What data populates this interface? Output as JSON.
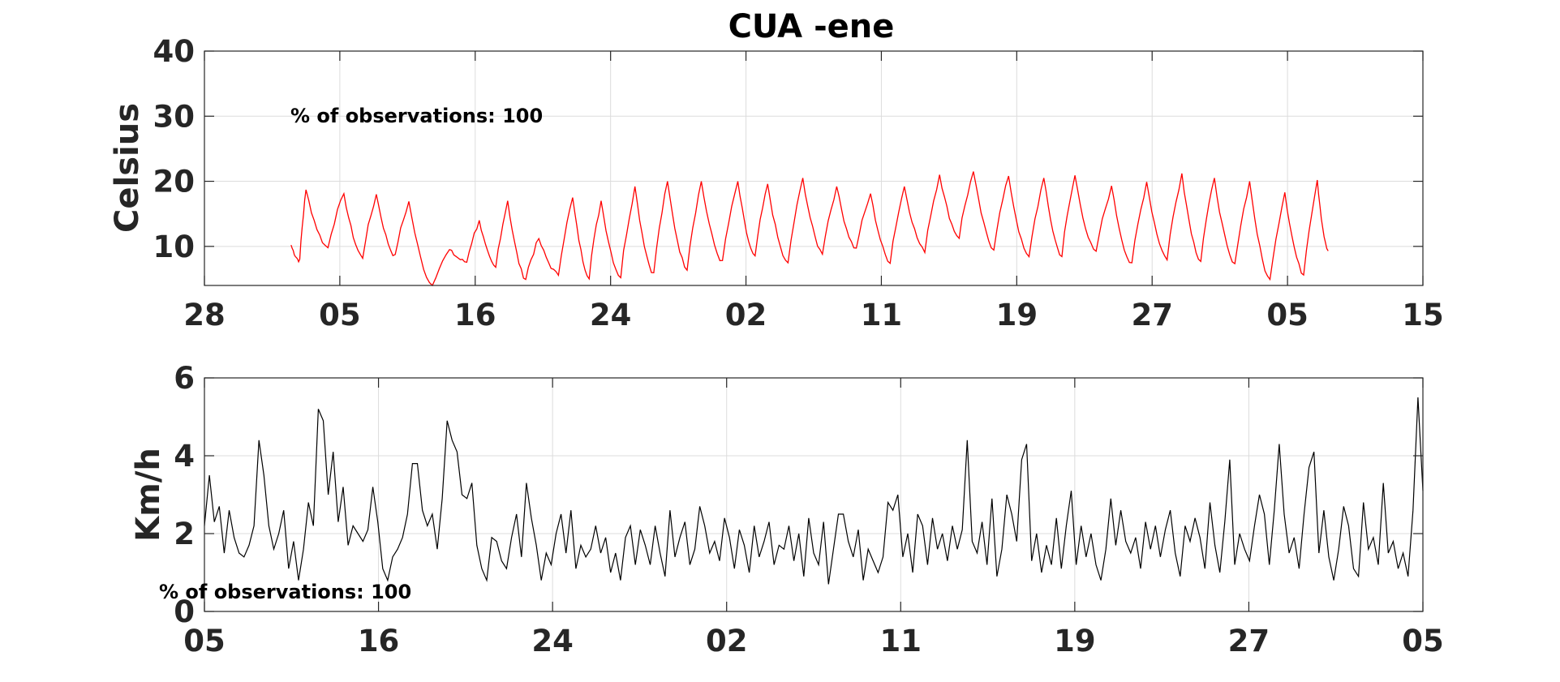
{
  "figure_title": "CUA -ene",
  "chart_data": [
    {
      "type": "line",
      "title": "CUA -ene",
      "ylabel": "Celsius",
      "xlabel": "",
      "annotation": "% of observations: 100",
      "x_tick_labels": [
        "28",
        "05",
        "16",
        "24",
        "02",
        "11",
        "19",
        "27",
        "05",
        "15"
      ],
      "ylim": [
        4,
        40
      ],
      "y_ticks": [
        10,
        20,
        30,
        40
      ],
      "xlim": [
        0,
        9
      ],
      "grid": true,
      "series": [
        {
          "color": "#ff0000",
          "daily_peaks_x": [
            0.75,
            1.03,
            1.27,
            1.51,
            1.81,
            2.03,
            2.24,
            2.47,
            2.72,
            2.93,
            3.18,
            3.42,
            3.67,
            3.94,
            4.16,
            4.42,
            4.67,
            4.92,
            5.17,
            5.43,
            5.68,
            5.94,
            6.2,
            6.43,
            6.7,
            6.96,
            7.22,
            7.46,
            7.72,
            7.98,
            8.22
          ],
          "daily_peaks": [
            18.7,
            18.1,
            18.0,
            16.9,
            9.5,
            14.0,
            17.0,
            11.2,
            17.5,
            17.0,
            19.2,
            20.0,
            20.0,
            20.0,
            19.6,
            20.5,
            19.2,
            18.1,
            19.2,
            21.0,
            21.5,
            20.8,
            20.5,
            20.9,
            19.3,
            19.9,
            21.2,
            20.5,
            20.0,
            18.3,
            20.2
          ],
          "daily_mins": [
            7.8,
            9.8,
            8.3,
            8.5,
            4.0,
            7.6,
            6.7,
            5.0,
            5.7,
            5.3,
            5.3,
            5.8,
            6.6,
            7.6,
            8.3,
            7.3,
            9.0,
            9.6,
            7.6,
            9.3,
            11.4,
            9.6,
            8.3,
            8.5,
            9.0,
            7.2,
            8.1,
            7.8,
            7.1,
            4.8,
            5.7
          ],
          "start": {
            "x": 0.64,
            "y": 10.2
          },
          "end": {
            "x": 8.3,
            "y": 9.3
          }
        }
      ]
    },
    {
      "type": "line",
      "ylabel": "Km/h",
      "xlabel": "",
      "annotation": "% of observations: 100",
      "x_tick_labels": [
        "05",
        "16",
        "24",
        "02",
        "11",
        "19",
        "27",
        "05"
      ],
      "ylim": [
        0,
        6
      ],
      "y_ticks": [
        0,
        2,
        4,
        6
      ],
      "xlim": [
        0,
        7
      ],
      "grid": true,
      "series": [
        {
          "color": "#000000",
          "y": [
            2.2,
            3.5,
            2.3,
            2.7,
            1.5,
            2.6,
            1.9,
            1.5,
            1.4,
            1.7,
            2.2,
            4.4,
            3.5,
            2.2,
            1.6,
            2.0,
            2.6,
            1.1,
            1.8,
            0.8,
            1.6,
            2.8,
            2.2,
            5.2,
            4.9,
            3.0,
            4.1,
            2.3,
            3.2,
            1.7,
            2.2,
            2.0,
            1.8,
            2.1,
            3.2,
            2.3,
            1.1,
            0.8,
            1.4,
            1.6,
            1.9,
            2.5,
            3.8,
            3.8,
            2.6,
            2.2,
            2.5,
            1.6,
            2.9,
            4.9,
            4.4,
            4.1,
            3.0,
            2.9,
            3.3,
            1.7,
            1.1,
            0.8,
            1.9,
            1.8,
            1.3,
            1.1,
            1.9,
            2.5,
            1.4,
            3.3,
            2.4,
            1.7,
            0.8,
            1.5,
            1.2,
            2.0,
            2.5,
            1.5,
            2.6,
            1.1,
            1.7,
            1.4,
            1.6,
            2.2,
            1.5,
            1.9,
            1.0,
            1.5,
            0.8,
            1.9,
            2.2,
            1.2,
            2.1,
            1.7,
            1.2,
            2.2,
            1.5,
            0.9,
            2.6,
            1.4,
            1.9,
            2.3,
            1.2,
            1.6,
            2.7,
            2.2,
            1.5,
            1.8,
            1.3,
            2.4,
            1.9,
            1.1,
            2.1,
            1.7,
            1.0,
            2.2,
            1.4,
            1.8,
            2.3,
            1.2,
            1.7,
            1.6,
            2.2,
            1.3,
            2.0,
            0.9,
            2.4,
            1.5,
            1.2,
            2.3,
            0.7,
            1.6,
            2.5,
            2.5,
            1.8,
            1.4,
            2.1,
            0.8,
            1.6,
            1.3,
            1.0,
            1.4,
            2.8,
            2.6,
            3.0,
            1.4,
            2.0,
            1.0,
            2.5,
            2.2,
            1.2,
            2.4,
            1.6,
            2.0,
            1.3,
            2.2,
            1.6,
            2.1,
            4.4,
            1.8,
            1.5,
            2.3,
            1.2,
            2.9,
            0.9,
            1.6,
            3.0,
            2.5,
            1.8,
            3.9,
            4.3,
            1.3,
            2.0,
            1.0,
            1.7,
            1.2,
            2.4,
            1.1,
            2.2,
            3.1,
            1.2,
            2.2,
            1.4,
            2.0,
            1.2,
            0.8,
            1.6,
            2.9,
            1.7,
            2.6,
            1.8,
            1.5,
            1.9,
            1.1,
            2.3,
            1.6,
            2.2,
            1.4,
            2.1,
            2.6,
            1.5,
            0.9,
            2.2,
            1.8,
            2.4,
            1.9,
            1.1,
            2.8,
            1.7,
            1.0,
            2.3,
            3.9,
            1.2,
            2.0,
            1.6,
            1.3,
            2.2,
            3.0,
            2.5,
            1.2,
            2.6,
            4.3,
            2.5,
            1.5,
            1.9,
            1.1,
            2.5,
            3.7,
            4.1,
            1.5,
            2.6,
            1.4,
            0.8,
            1.6,
            2.7,
            2.2,
            1.1,
            0.9,
            2.8,
            1.6,
            1.9,
            1.2,
            3.3,
            1.5,
            1.8,
            1.1,
            1.5,
            0.9,
            2.6,
            5.5,
            3.1
          ]
        }
      ]
    }
  ]
}
